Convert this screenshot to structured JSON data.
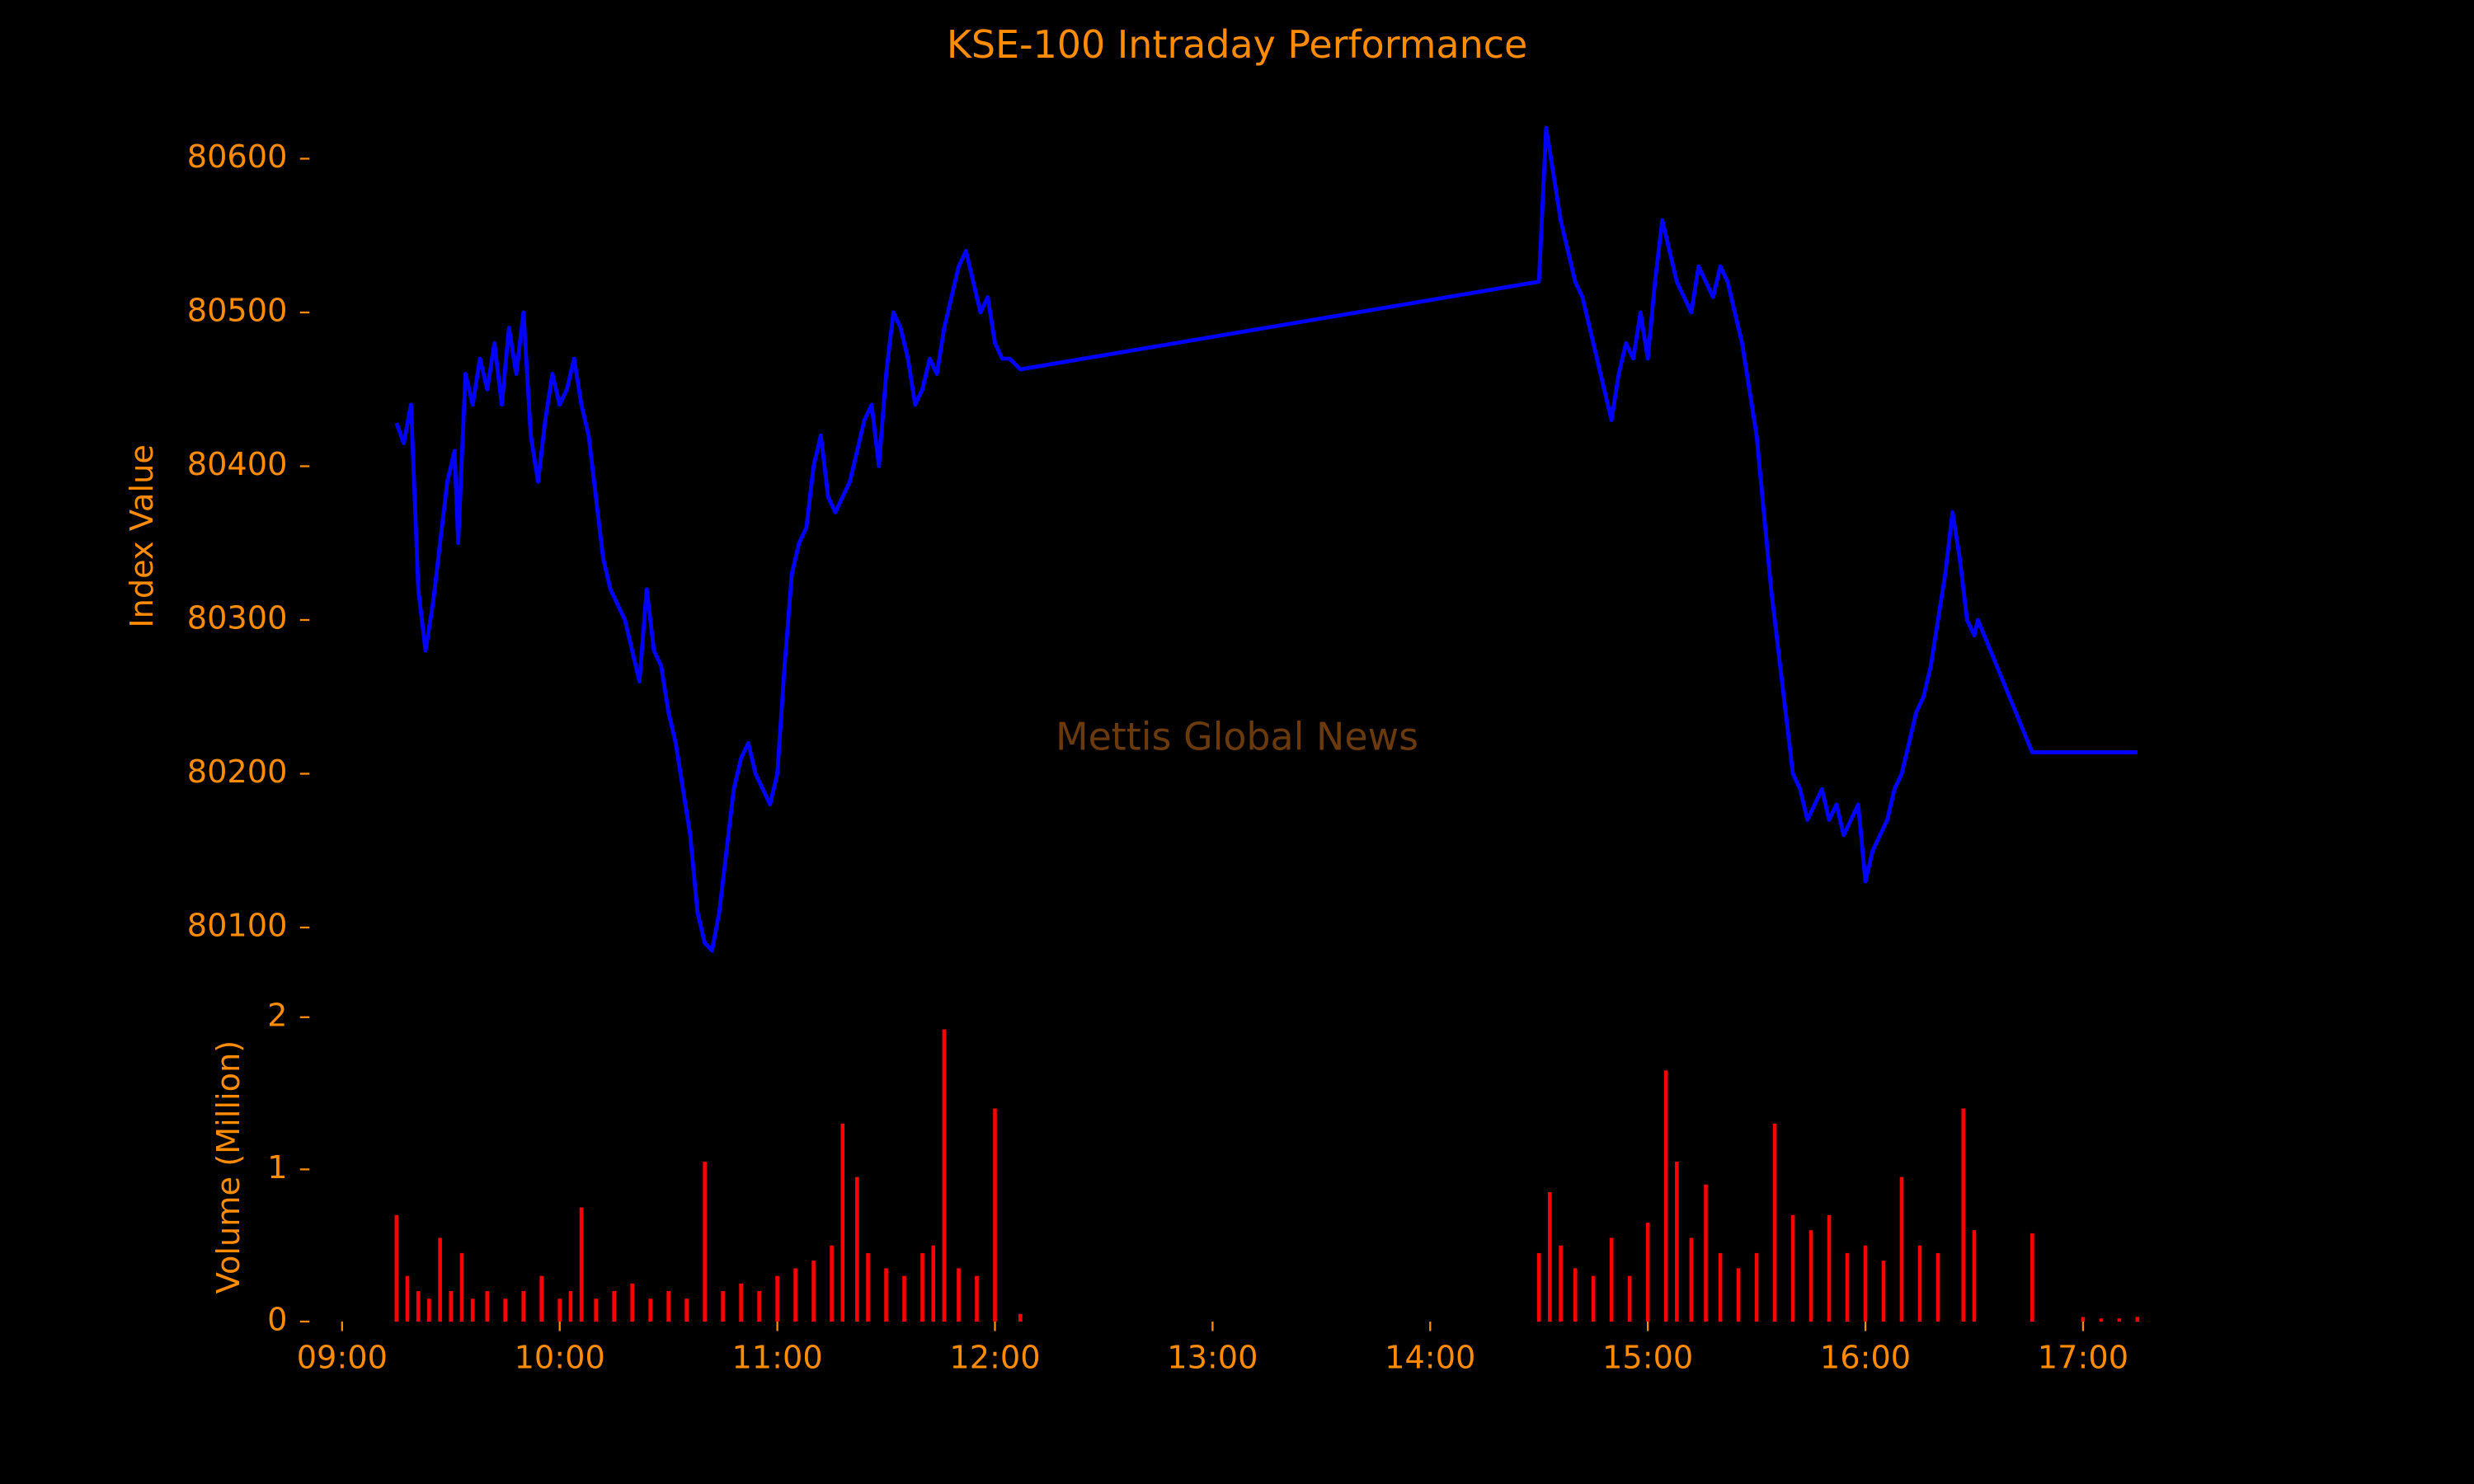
{
  "chart_data": [
    {
      "type": "line",
      "title": "KSE-100 Intraday Performance",
      "ylabel": "Index Value",
      "annotation": "Mettis Global News",
      "color": "#0000ff",
      "xlim": [
        "08:51",
        "17:39"
      ],
      "ylim": [
        80055,
        80655
      ],
      "yticks": [
        80100,
        80200,
        80300,
        80400,
        80500,
        80600
      ],
      "x": [
        "09:15",
        "09:17",
        "09:19",
        "09:21",
        "09:23",
        "09:25",
        "09:27",
        "09:29",
        "09:31",
        "09:32",
        "09:34",
        "09:36",
        "09:38",
        "09:40",
        "09:42",
        "09:44",
        "09:46",
        "09:48",
        "09:50",
        "09:52",
        "09:54",
        "09:56",
        "09:58",
        "10:00",
        "10:02",
        "10:04",
        "10:06",
        "10:08",
        "10:10",
        "10:12",
        "10:14",
        "10:16",
        "10:18",
        "10:20",
        "10:22",
        "10:24",
        "10:26",
        "10:28",
        "10:30",
        "10:32",
        "10:34",
        "10:36",
        "10:38",
        "10:40",
        "10:42",
        "10:44",
        "10:46",
        "10:48",
        "10:50",
        "10:52",
        "10:54",
        "10:56",
        "10:58",
        "11:00",
        "11:02",
        "11:04",
        "11:06",
        "11:08",
        "11:10",
        "11:12",
        "11:14",
        "11:16",
        "11:18",
        "11:20",
        "11:22",
        "11:24",
        "11:26",
        "11:28",
        "11:30",
        "11:32",
        "11:34",
        "11:36",
        "11:38",
        "11:40",
        "11:42",
        "11:44",
        "11:46",
        "11:48",
        "11:50",
        "11:52",
        "11:54",
        "11:56",
        "11:58",
        "12:00",
        "12:02",
        "12:04",
        "12:07",
        "14:30",
        "14:32",
        "14:34",
        "14:36",
        "14:38",
        "14:40",
        "14:42",
        "14:44",
        "14:46",
        "14:48",
        "14:50",
        "14:52",
        "14:54",
        "14:56",
        "14:58",
        "15:00",
        "15:02",
        "15:04",
        "15:06",
        "15:08",
        "15:10",
        "15:12",
        "15:14",
        "15:16",
        "15:18",
        "15:20",
        "15:22",
        "15:24",
        "15:26",
        "15:28",
        "15:30",
        "15:32",
        "15:34",
        "15:36",
        "15:38",
        "15:40",
        "15:42",
        "15:44",
        "15:46",
        "15:48",
        "15:50",
        "15:52",
        "15:54",
        "15:56",
        "15:58",
        "16:00",
        "16:02",
        "16:04",
        "16:06",
        "16:08",
        "16:10",
        "16:12",
        "16:14",
        "16:16",
        "16:18",
        "16:20",
        "16:22",
        "16:24",
        "16:26",
        "16:28",
        "16:30",
        "16:31",
        "16:46",
        "17:15"
      ],
      "values": [
        80428,
        80415,
        80440,
        80320,
        80280,
        80310,
        80350,
        80390,
        80410,
        80350,
        80460,
        80440,
        80470,
        80450,
        80480,
        80440,
        80490,
        80460,
        80500,
        80420,
        80390,
        80430,
        80460,
        80440,
        80450,
        80470,
        80440,
        80420,
        80380,
        80340,
        80320,
        80310,
        80300,
        80280,
        80260,
        80320,
        80280,
        80270,
        80240,
        80220,
        80190,
        80160,
        80110,
        80090,
        80085,
        80110,
        80150,
        80190,
        80210,
        80220,
        80200,
        80190,
        80180,
        80200,
        80270,
        80330,
        80350,
        80360,
        80400,
        80420,
        80380,
        80370,
        80380,
        80390,
        80410,
        80430,
        80440,
        80400,
        80460,
        80500,
        80490,
        80470,
        80440,
        80450,
        80470,
        80460,
        80490,
        80510,
        80530,
        80540,
        80520,
        80500,
        80510,
        80480,
        80470,
        80470,
        80463,
        80520,
        80620,
        80590,
        80560,
        80540,
        80520,
        80510,
        80490,
        80470,
        80450,
        80430,
        80460,
        80480,
        80470,
        80500,
        80470,
        80520,
        80560,
        80540,
        80520,
        80510,
        80500,
        80530,
        80520,
        80510,
        80530,
        80520,
        80500,
        80480,
        80450,
        80420,
        80370,
        80320,
        80280,
        80240,
        80200,
        80190,
        80170,
        80180,
        80190,
        80170,
        80180,
        80160,
        80170,
        80180,
        80130,
        80150,
        80160,
        80170,
        80190,
        80200,
        80220,
        80240,
        80250,
        80270,
        80300,
        80330,
        80370,
        80340,
        80300,
        80290,
        80300,
        80214,
        80214
      ]
    },
    {
      "type": "bar",
      "ylabel": "Volume (Million)",
      "color": "#ff0000",
      "xlim": [
        "08:51",
        "17:39"
      ],
      "xticks": [
        "09:00",
        "10:00",
        "11:00",
        "12:00",
        "13:00",
        "14:00",
        "15:00",
        "16:00",
        "17:00"
      ],
      "ylim": [
        0,
        2
      ],
      "yticks": [
        0,
        1,
        2
      ],
      "x": [
        "09:15",
        "09:18",
        "09:21",
        "09:24",
        "09:27",
        "09:30",
        "09:33",
        "09:36",
        "09:40",
        "09:45",
        "09:50",
        "09:55",
        "10:00",
        "10:03",
        "10:06",
        "10:10",
        "10:15",
        "10:20",
        "10:25",
        "10:30",
        "10:35",
        "10:40",
        "10:45",
        "10:50",
        "10:55",
        "11:00",
        "11:05",
        "11:10",
        "11:15",
        "11:18",
        "11:22",
        "11:25",
        "11:30",
        "11:35",
        "11:40",
        "11:43",
        "11:46",
        "11:50",
        "11:55",
        "12:00",
        "12:07",
        "14:30",
        "14:33",
        "14:36",
        "14:40",
        "14:45",
        "14:50",
        "14:55",
        "15:00",
        "15:05",
        "15:08",
        "15:12",
        "15:16",
        "15:20",
        "15:25",
        "15:30",
        "15:35",
        "15:40",
        "15:45",
        "15:50",
        "15:55",
        "16:00",
        "16:05",
        "16:10",
        "16:15",
        "16:20",
        "16:27",
        "16:30",
        "16:46",
        "17:00",
        "17:05",
        "17:10",
        "17:15"
      ],
      "values": [
        0.7,
        0.3,
        0.2,
        0.15,
        0.55,
        0.2,
        0.45,
        0.15,
        0.2,
        0.15,
        0.2,
        0.3,
        0.15,
        0.2,
        0.75,
        0.15,
        0.2,
        0.25,
        0.15,
        0.2,
        0.15,
        1.05,
        0.2,
        0.25,
        0.2,
        0.3,
        0.35,
        0.4,
        0.5,
        1.3,
        0.95,
        0.45,
        0.35,
        0.3,
        0.45,
        0.5,
        1.92,
        0.35,
        0.3,
        1.4,
        0.05,
        0.45,
        0.85,
        0.5,
        0.35,
        0.3,
        0.55,
        0.3,
        0.65,
        1.65,
        1.05,
        0.55,
        0.9,
        0.45,
        0.35,
        0.45,
        1.3,
        0.7,
        0.6,
        0.7,
        0.45,
        0.5,
        0.4,
        0.95,
        0.5,
        0.45,
        1.4,
        0.6,
        0.58,
        0.03,
        0.02,
        0.02,
        0.03
      ]
    }
  ]
}
